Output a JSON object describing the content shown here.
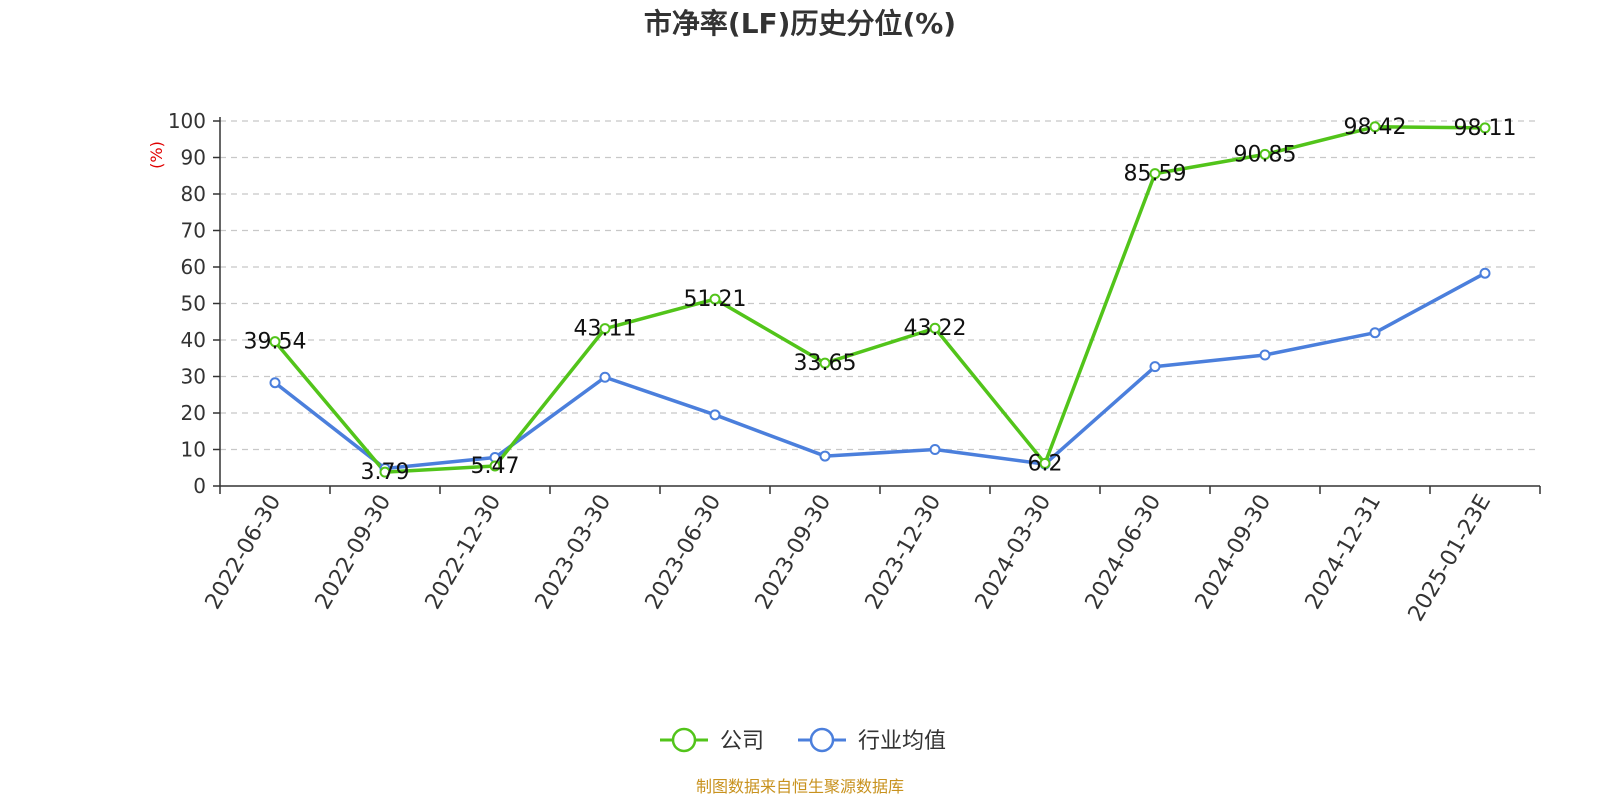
{
  "chart_data": {
    "type": "line",
    "title": "市净率(LF)历史分位(%)",
    "ylabel": "(%)",
    "xlabel": "",
    "ylim": [
      0,
      100
    ],
    "yticks": [
      0,
      10,
      20,
      30,
      40,
      50,
      60,
      70,
      80,
      90,
      100
    ],
    "grid": true,
    "legend_position": "bottom",
    "categories": [
      "2022-06-30",
      "2022-09-30",
      "2022-12-30",
      "2023-03-30",
      "2023-06-30",
      "2023-09-30",
      "2023-12-30",
      "2024-03-30",
      "2024-06-30",
      "2024-09-30",
      "2024-12-31",
      "2025-01-23E"
    ],
    "series": [
      {
        "name": "公司",
        "color": "#52c41a",
        "show_labels": true,
        "values": [
          39.54,
          3.79,
          5.47,
          43.11,
          51.21,
          33.65,
          43.22,
          6.2,
          85.59,
          90.85,
          98.42,
          98.11
        ]
      },
      {
        "name": "行业均值",
        "color": "#4b7fdc",
        "show_labels": false,
        "values": [
          28.3,
          4.8,
          7.8,
          29.8,
          19.5,
          8.2,
          10.0,
          6.0,
          32.7,
          35.9,
          42.0,
          58.3
        ]
      }
    ],
    "ylabel_color": "#e00000"
  },
  "source_text": "制图数据来自恒生聚源数据库",
  "source_color": "#c8921e"
}
